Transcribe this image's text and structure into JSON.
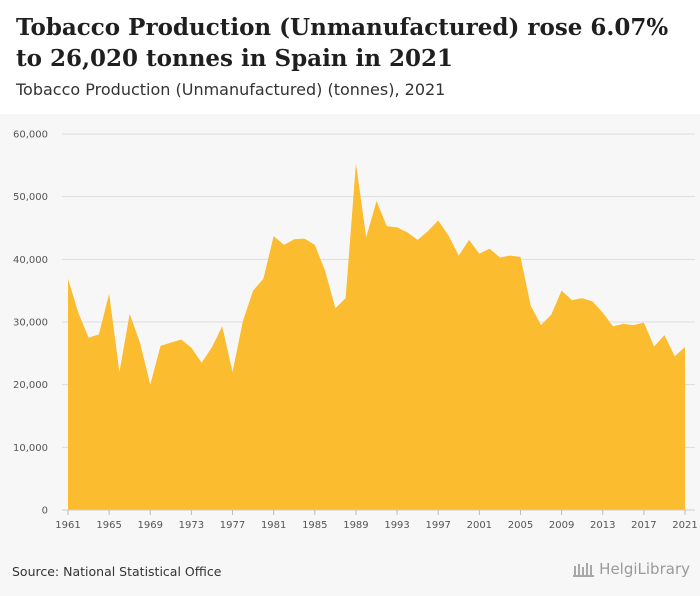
{
  "header": {
    "title": "Tobacco Production (Unmanufactured) rose 6.07% to 26,020 tonnes in Spain in 2021",
    "subtitle": "Tobacco Production (Unmanufactured) (tonnes), 2021"
  },
  "footer": {
    "source": "Source: National Statistical Office",
    "logo_text": "HelgiLibrary"
  },
  "colors": {
    "area_fill": "#fbbc2f",
    "grid": "#dddddd",
    "background": "#f7f7f7"
  },
  "chart_data": {
    "type": "area",
    "ylim": [
      0,
      60000
    ],
    "yticks": [
      0,
      10000,
      20000,
      30000,
      40000,
      50000,
      60000
    ],
    "ytick_labels": [
      "0",
      "10,000",
      "20,000",
      "30,000",
      "40,000",
      "50,000",
      "60,000"
    ],
    "xlim": [
      1961,
      2021
    ],
    "xticks": [
      1961,
      1965,
      1969,
      1973,
      1977,
      1981,
      1985,
      1989,
      1993,
      1997,
      2001,
      2005,
      2009,
      2013,
      2017,
      2021
    ],
    "grid": true,
    "series": [
      {
        "x": [
          1961,
          1962,
          1963,
          1964,
          1965,
          1966,
          1967,
          1968,
          1969,
          1970,
          1971,
          1972,
          1973,
          1974,
          1975,
          1976,
          1977,
          1978,
          1979,
          1980,
          1981,
          1982,
          1983,
          1984,
          1985,
          1986,
          1987,
          1988,
          1989,
          1990,
          1991,
          1992,
          1993,
          1994,
          1995,
          1996,
          1997,
          1998,
          1999,
          2000,
          2001,
          2002,
          2003,
          2004,
          2005,
          2006,
          2007,
          2008,
          2009,
          2010,
          2011,
          2012,
          2013,
          2014,
          2015,
          2016,
          2017,
          2018,
          2019,
          2020,
          2021
        ],
        "values": [
          36900,
          31500,
          27500,
          28000,
          34500,
          22000,
          31300,
          26700,
          20000,
          26200,
          26700,
          27200,
          25900,
          23500,
          26000,
          29300,
          22000,
          30100,
          35000,
          36900,
          43700,
          42300,
          43200,
          43300,
          42300,
          38200,
          32200,
          33800,
          55300,
          43500,
          49300,
          45300,
          45100,
          44300,
          43100,
          44500,
          46200,
          43800,
          40600,
          43100,
          40900,
          41700,
          40300,
          40600,
          40400,
          32600,
          29500,
          31200,
          35000,
          33500,
          33800,
          33300,
          31500,
          29300,
          29700,
          29500,
          29900,
          26100,
          27900,
          24530,
          26020
        ]
      }
    ]
  }
}
